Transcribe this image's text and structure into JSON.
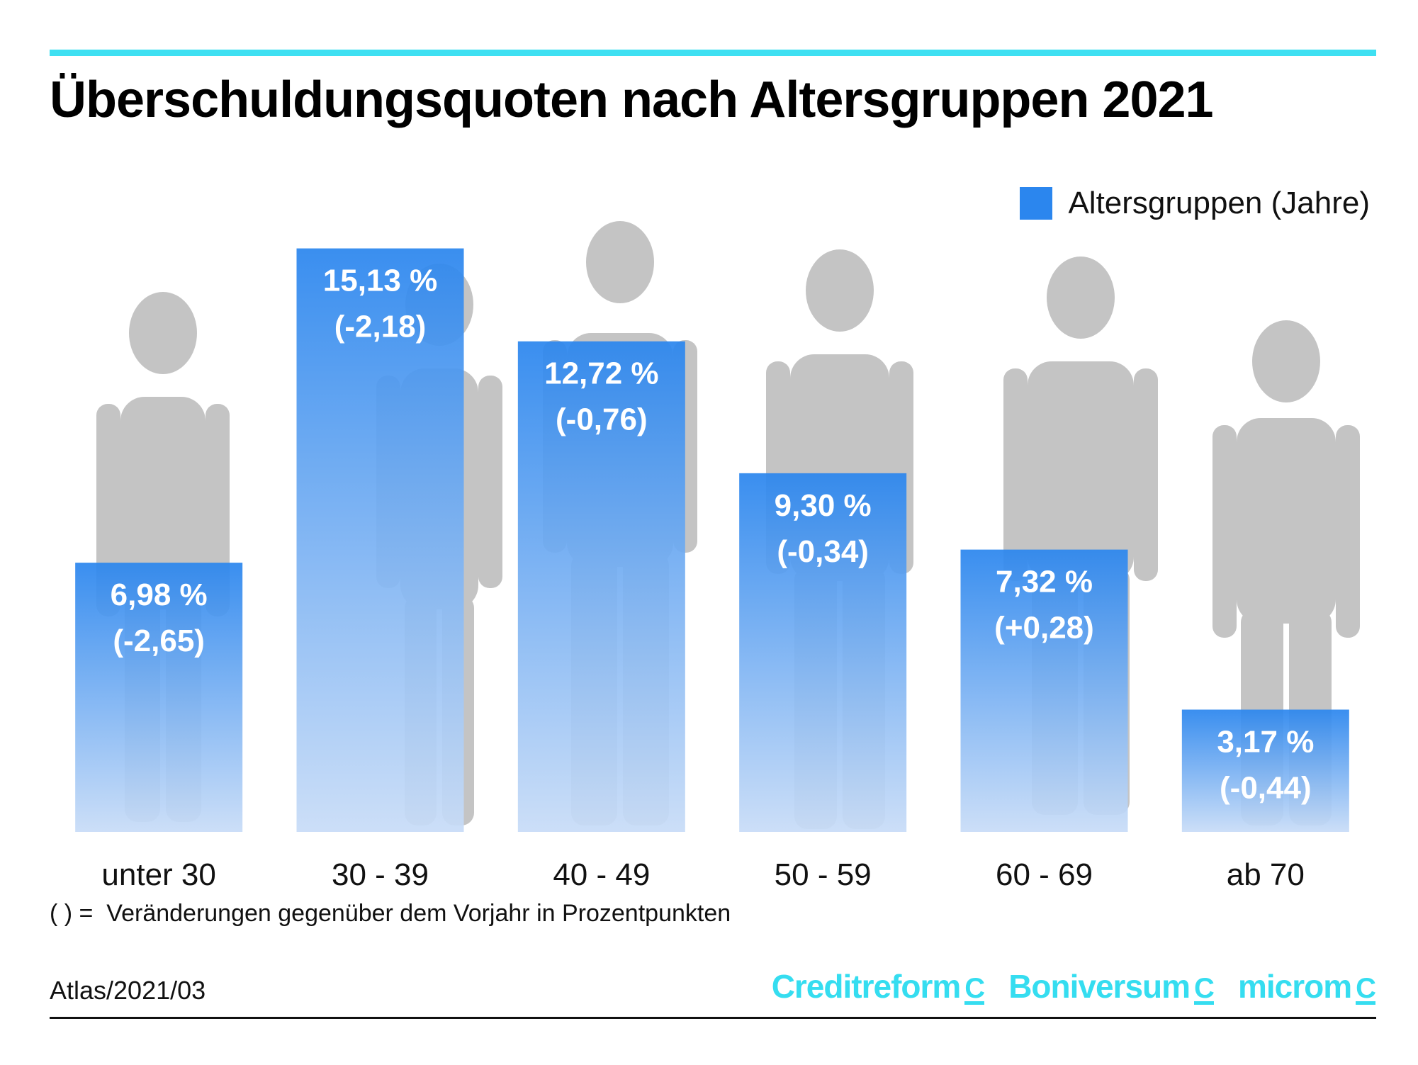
{
  "title": "Überschuldungsquoten nach Altersgruppen 2021",
  "legend": {
    "label": "Altersgruppen (Jahre)"
  },
  "colors": {
    "accent": "#3ee0f2",
    "bar_top": "#2b86ee",
    "bar_bottom": "#c8dcf7",
    "silhouette": "#c4c4c4",
    "label_text": "#ffffff"
  },
  "chart_data": {
    "type": "bar",
    "title": "Überschuldungsquoten nach Altersgruppen 2021",
    "xlabel": "",
    "ylabel": "",
    "ylim": [
      0,
      16.5
    ],
    "grid": false,
    "legend": "top-right",
    "categories": [
      "unter 30",
      "30 - 39",
      "40 - 49",
      "50 - 59",
      "60 - 69",
      "ab 70"
    ],
    "series": [
      {
        "name": "Altersgruppen (Jahre)",
        "values": [
          6.98,
          15.13,
          12.72,
          9.3,
          7.32,
          3.17
        ],
        "value_labels": [
          "6,98 %",
          "15,13 %",
          "12,72 %",
          "9,30 %",
          "7,32 %",
          "3,17 %"
        ],
        "change_labels": [
          "(-2,65)",
          "(-2,18)",
          "(-0,76)",
          "(-0,34)",
          "(+0,28)",
          "(-0,44)"
        ],
        "change_values": [
          -2.65,
          -2.18,
          -0.76,
          -0.34,
          0.28,
          -0.44
        ]
      }
    ]
  },
  "footnote": "( ) =  Veränderungen gegenüber dem Vorjahr in Prozentpunkten",
  "source": "Atlas/2021/03",
  "logos": [
    {
      "name": "Creditreform",
      "mark": "C"
    },
    {
      "name": "Boniversum",
      "mark": "C"
    },
    {
      "name": "microm",
      "mark": "C"
    }
  ]
}
